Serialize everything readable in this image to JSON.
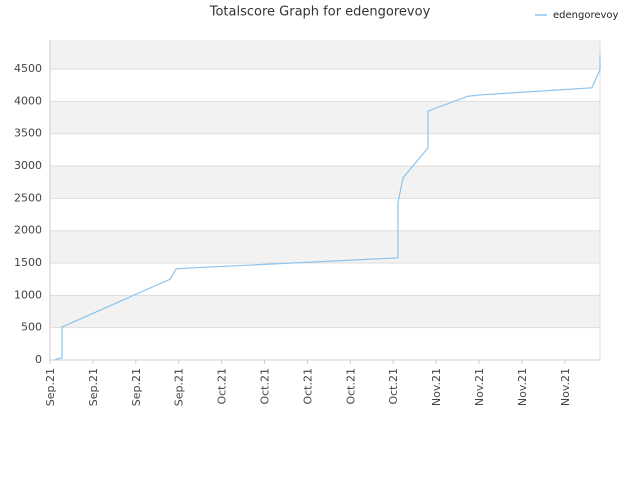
{
  "chart_data": {
    "type": "line",
    "title": "Totalscore Graph for edengorevoy",
    "x": [
      0.12,
      0.26,
      0.28,
      0.28,
      2.8,
      2.94,
      3.17,
      8.11,
      8.11,
      8.23,
      8.81,
      8.81,
      9.74,
      10.02,
      12.63,
      12.82,
      12.82
    ],
    "series": [
      {
        "name": "edengorevoy",
        "color": "#8cc4ee",
        "values": [
          10,
          30,
          30,
          510,
          1250,
          1410,
          1420,
          1580,
          2430,
          2820,
          3280,
          3850,
          4080,
          4100,
          4210,
          4490,
          4720
        ]
      }
    ],
    "xlim": [
      0,
      12.82
    ],
    "xticks": [
      {
        "value": 0,
        "label": "Sep.21"
      },
      {
        "value": 1,
        "label": "Sep.21"
      },
      {
        "value": 2,
        "label": "Sep.21"
      },
      {
        "value": 3,
        "label": "Sep.21"
      },
      {
        "value": 4,
        "label": "Oct.21"
      },
      {
        "value": 5,
        "label": "Oct.21"
      },
      {
        "value": 6,
        "label": "Oct.21"
      },
      {
        "value": 7,
        "label": "Oct.21"
      },
      {
        "value": 8,
        "label": "Oct.21"
      },
      {
        "value": 9,
        "label": "Nov.21"
      },
      {
        "value": 10,
        "label": "Nov.21"
      },
      {
        "value": 11,
        "label": "Nov.21"
      },
      {
        "value": 12,
        "label": "Nov.21"
      }
    ],
    "ylim": [
      0,
      4950
    ],
    "yticks": [
      0,
      500,
      1000,
      1500,
      2000,
      2500,
      3000,
      3500,
      4000,
      4500
    ],
    "grid": true,
    "legend": "top-right"
  }
}
